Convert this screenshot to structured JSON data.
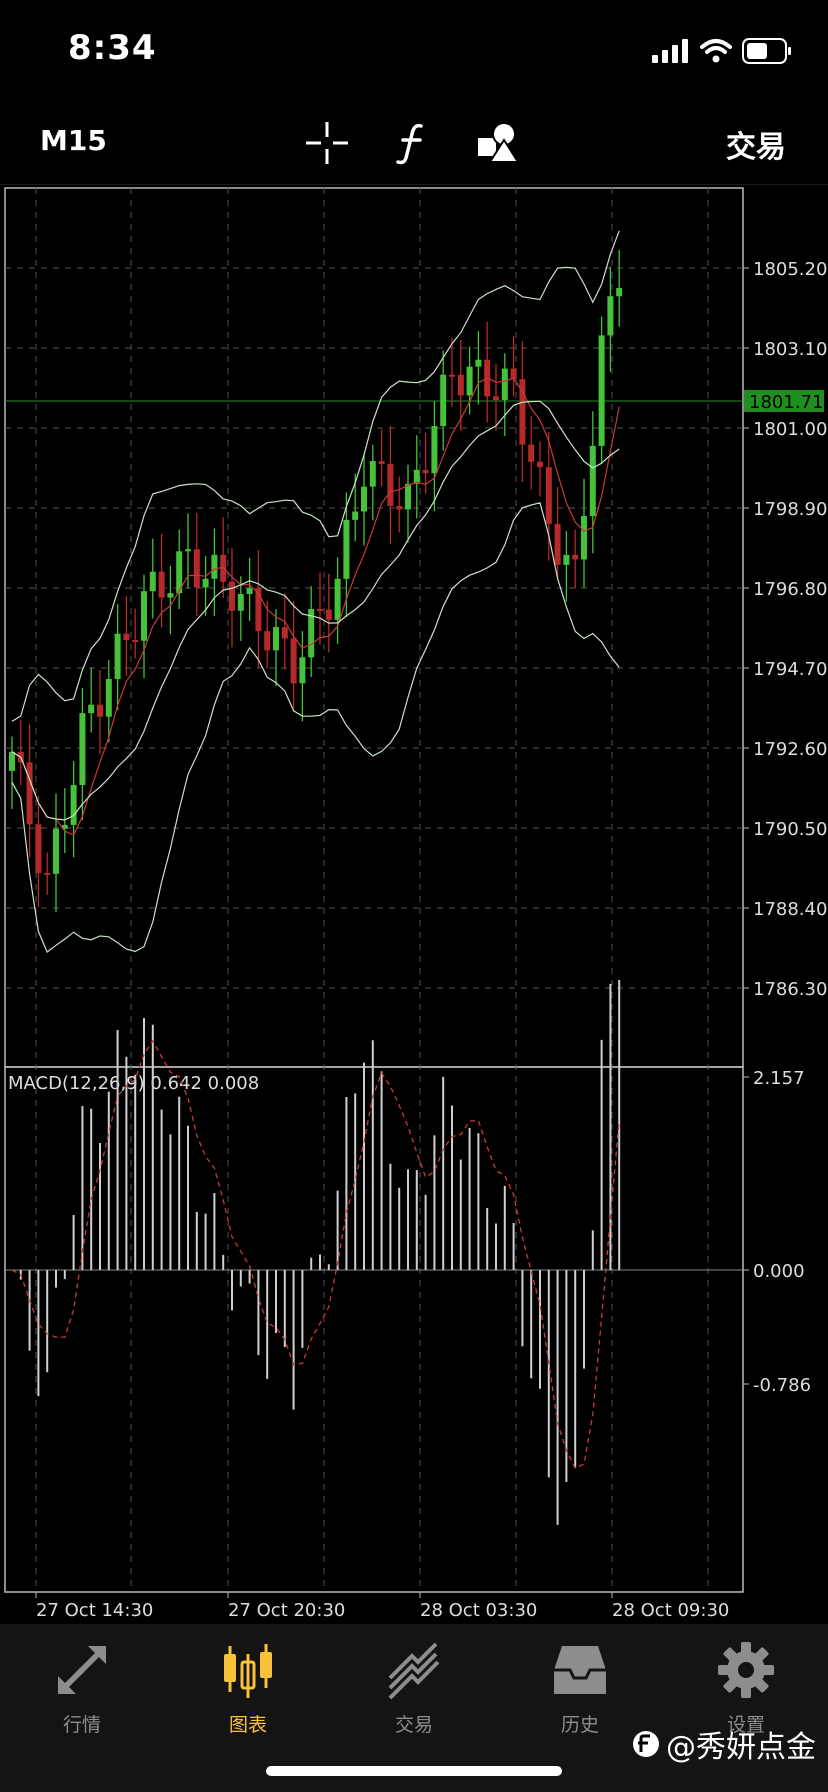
{
  "status": {
    "time": "8:34"
  },
  "toolbar": {
    "timeframe": "M15",
    "trade_label": "交易"
  },
  "chart": {
    "price_labels": [
      "1805.20",
      "1803.10",
      "1801.00",
      "1798.90",
      "1796.80",
      "1794.70",
      "1792.60",
      "1790.50",
      "1788.40",
      "1786.30"
    ],
    "current_price": "1801.71",
    "indicator_label": "MACD(12,26,9) 0.642 0.008",
    "macd_labels": [
      "2.157",
      "0.000",
      "-0.786"
    ],
    "time_labels": [
      "27 Oct 14:30",
      "27 Oct 20:30",
      "28 Oct 03:30",
      "28 Oct 09:30"
    ],
    "colors": {
      "bull": "#46c13a",
      "bear": "#b52a2a",
      "band": "#c9e3c9",
      "ma": "#c83a3a",
      "price_line": "#1f8f1f",
      "grid": "#555555"
    }
  },
  "tabs": [
    {
      "label": "行情",
      "icon": "quotes-icon"
    },
    {
      "label": "图表",
      "icon": "chart-icon"
    },
    {
      "label": "交易",
      "icon": "trade-icon"
    },
    {
      "label": "历史",
      "icon": "history-icon"
    },
    {
      "label": "设置",
      "icon": "settings-icon"
    }
  ],
  "watermark": {
    "text": "@秀妍点金"
  }
}
